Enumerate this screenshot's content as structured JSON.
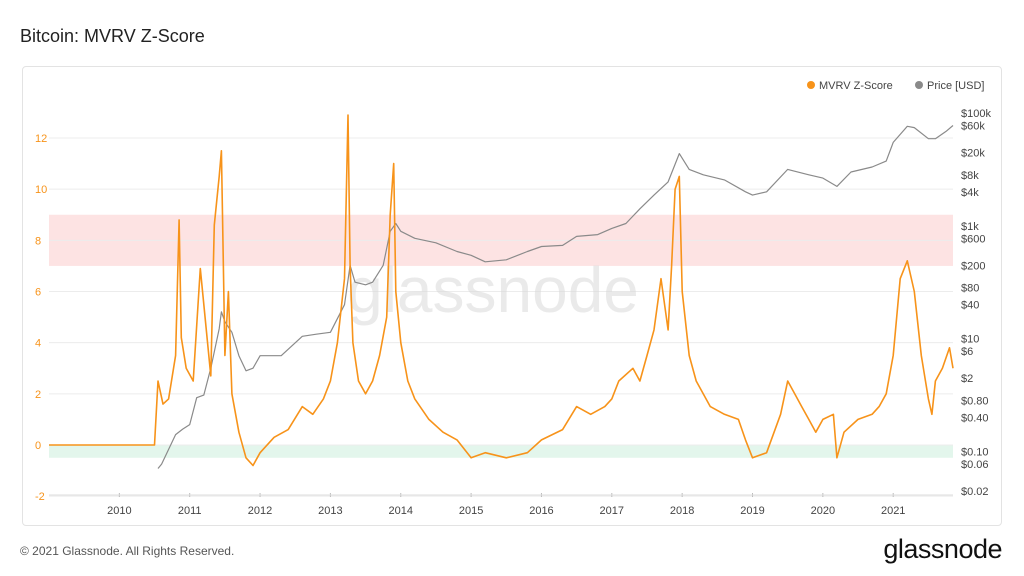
{
  "page": {
    "title": "Bitcoin: MVRV Z-Score",
    "copyright": "© 2021 Glassnode. All Rights Reserved.",
    "logo": "glassnode",
    "watermark": "glassnode"
  },
  "colors": {
    "zscore": "#F7931A",
    "price": "#8a8a8a",
    "red_band": "#fde3e3",
    "green_band": "#e3f6ec",
    "grid": "#ececec"
  },
  "chart_data": {
    "type": "line",
    "legend": [
      {
        "label": "MVRV Z-Score",
        "color": "#F7931A"
      },
      {
        "label": "Price [USD]",
        "color": "#8a8a8a"
      }
    ],
    "legend_position": "top-right",
    "x_ticks": [
      "2010",
      "2011",
      "2012",
      "2013",
      "2014",
      "2015",
      "2016",
      "2017",
      "2018",
      "2019",
      "2020",
      "2021"
    ],
    "x_range": [
      2009.0,
      2021.85
    ],
    "left_axis": {
      "ticks": [
        -2,
        0,
        2,
        4,
        6,
        8,
        10,
        12
      ],
      "labels": [
        "-2",
        "0",
        "2",
        "4",
        "6",
        "8",
        "10",
        "12"
      ],
      "range": [
        -2,
        13.5
      ]
    },
    "right_axis": {
      "scale": "log",
      "range": [
        0.02,
        150000
      ],
      "ticks": [
        100000,
        60000,
        20000,
        8000,
        4000,
        1000,
        600,
        200,
        80,
        40,
        10,
        6,
        2,
        0.8,
        0.4,
        0.1,
        0.06,
        0.02
      ],
      "labels": [
        "$100k",
        "$60k",
        "$20k",
        "$8k",
        "$4k",
        "$1k",
        "$600",
        "$200",
        "$80",
        "$40",
        "$10",
        "$6",
        "$2",
        "$0.80",
        "$0.40",
        "$0.10",
        "$0.06",
        "$0.02"
      ]
    },
    "bands": [
      {
        "name": "red",
        "from": 7.0,
        "to": 9.0
      },
      {
        "name": "green",
        "from": -0.5,
        "to": 0.0
      }
    ],
    "series": [
      {
        "name": "MVRV Z-Score",
        "axis": "left",
        "x": [
          2009.0,
          2010.5,
          2010.55,
          2010.62,
          2010.7,
          2010.8,
          2010.85,
          2010.88,
          2010.95,
          2011.05,
          2011.15,
          2011.3,
          2011.35,
          2011.42,
          2011.45,
          2011.5,
          2011.55,
          2011.6,
          2011.7,
          2011.8,
          2011.9,
          2012.0,
          2012.2,
          2012.4,
          2012.6,
          2012.75,
          2012.9,
          2013.0,
          2013.1,
          2013.2,
          2013.25,
          2013.28,
          2013.32,
          2013.4,
          2013.5,
          2013.6,
          2013.7,
          2013.8,
          2013.85,
          2013.9,
          2013.93,
          2014.0,
          2014.1,
          2014.2,
          2014.4,
          2014.6,
          2014.8,
          2015.0,
          2015.2,
          2015.5,
          2015.8,
          2016.0,
          2016.3,
          2016.5,
          2016.7,
          2016.9,
          2017.0,
          2017.1,
          2017.3,
          2017.4,
          2017.5,
          2017.6,
          2017.7,
          2017.8,
          2017.85,
          2017.9,
          2017.96,
          2018.0,
          2018.1,
          2018.2,
          2018.4,
          2018.6,
          2018.8,
          2018.9,
          2019.0,
          2019.2,
          2019.4,
          2019.5,
          2019.6,
          2019.7,
          2019.8,
          2019.9,
          2020.0,
          2020.15,
          2020.2,
          2020.3,
          2020.5,
          2020.7,
          2020.8,
          2020.9,
          2021.0,
          2021.05,
          2021.1,
          2021.2,
          2021.3,
          2021.4,
          2021.5,
          2021.55,
          2021.6,
          2021.7,
          2021.8,
          2021.85
        ],
        "y": [
          0.0,
          0.0,
          2.5,
          1.6,
          1.8,
          3.5,
          8.8,
          4.2,
          3.0,
          2.5,
          6.9,
          2.7,
          8.6,
          10.5,
          11.5,
          3.5,
          6.0,
          2.0,
          0.5,
          -0.5,
          -0.8,
          -0.3,
          0.3,
          0.6,
          1.5,
          1.2,
          1.8,
          2.5,
          4.0,
          6.5,
          12.9,
          7.0,
          4.0,
          2.5,
          2.0,
          2.5,
          3.5,
          5.0,
          9.0,
          11.0,
          6.0,
          4.0,
          2.5,
          1.8,
          1.0,
          0.5,
          0.2,
          -0.5,
          -0.3,
          -0.5,
          -0.3,
          0.2,
          0.6,
          1.5,
          1.2,
          1.5,
          1.8,
          2.5,
          3.0,
          2.5,
          3.5,
          4.5,
          6.5,
          4.5,
          7.0,
          10.0,
          10.5,
          6.0,
          3.5,
          2.5,
          1.5,
          1.2,
          1.0,
          0.2,
          -0.5,
          -0.3,
          1.2,
          2.5,
          2.0,
          1.5,
          1.0,
          0.5,
          1.0,
          1.2,
          -0.5,
          0.5,
          1.0,
          1.2,
          1.5,
          2.0,
          3.5,
          5.0,
          6.5,
          7.2,
          6.0,
          3.5,
          1.8,
          1.2,
          2.5,
          3.0,
          3.8,
          3.0
        ]
      },
      {
        "name": "Price [USD]",
        "axis": "right",
        "x": [
          2010.55,
          2010.6,
          2010.8,
          2010.9,
          2011.0,
          2011.1,
          2011.2,
          2011.3,
          2011.42,
          2011.45,
          2011.5,
          2011.6,
          2011.7,
          2011.8,
          2011.9,
          2012.0,
          2012.3,
          2012.6,
          2012.8,
          2013.0,
          2013.2,
          2013.28,
          2013.35,
          2013.5,
          2013.6,
          2013.75,
          2013.85,
          2013.93,
          2014.0,
          2014.2,
          2014.5,
          2014.8,
          2015.0,
          2015.2,
          2015.5,
          2015.8,
          2016.0,
          2016.3,
          2016.5,
          2016.8,
          2017.0,
          2017.2,
          2017.4,
          2017.6,
          2017.8,
          2017.96,
          2018.1,
          2018.3,
          2018.6,
          2018.9,
          2019.0,
          2019.2,
          2019.5,
          2019.8,
          2020.0,
          2020.2,
          2020.4,
          2020.7,
          2020.9,
          2021.0,
          2021.2,
          2021.3,
          2021.5,
          2021.6,
          2021.75,
          2021.85
        ],
        "y": [
          0.05,
          0.06,
          0.2,
          0.25,
          0.3,
          0.9,
          1.0,
          3.0,
          15,
          30,
          20,
          13,
          5,
          2.7,
          3.0,
          5,
          5,
          11,
          12,
          13,
          40,
          200,
          100,
          90,
          100,
          200,
          800,
          1100,
          800,
          600,
          500,
          350,
          300,
          230,
          250,
          350,
          430,
          450,
          650,
          700,
          900,
          1100,
          2000,
          3500,
          6000,
          19000,
          10000,
          8000,
          6500,
          4000,
          3500,
          4000,
          10000,
          8000,
          7000,
          5000,
          9000,
          11000,
          14000,
          30000,
          58000,
          55000,
          35000,
          35000,
          47000,
          60000
        ]
      }
    ]
  }
}
